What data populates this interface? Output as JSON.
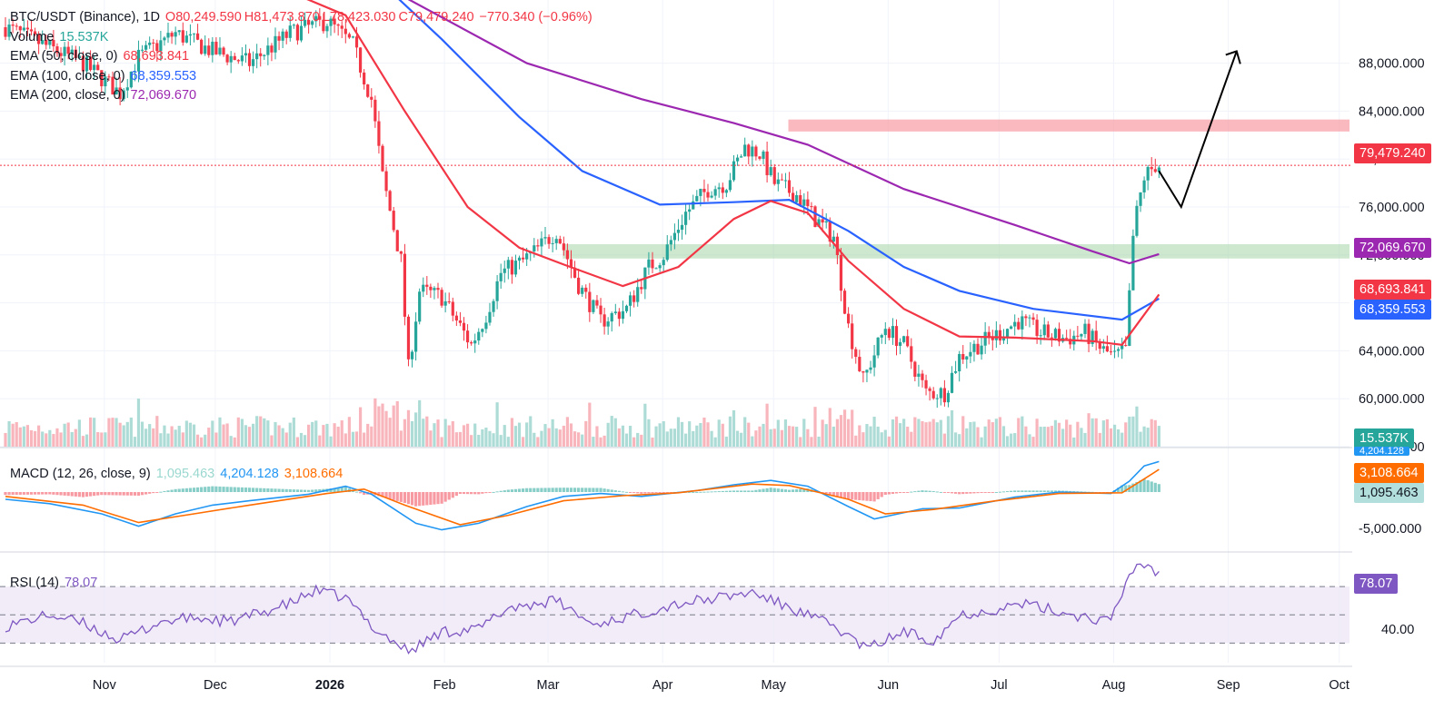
{
  "header": {
    "symbol": "BTC/USDT (Binance), 1D",
    "open": "O80,249.590",
    "high": "H81,473.870",
    "low": "L78,423.030",
    "close": "C79,479.240",
    "change": "−770.340 (−0.96%)"
  },
  "legend": {
    "volume_label": "Volume",
    "volume_value": "15.537K",
    "ema50_label": "EMA (50, close, 0)",
    "ema50_value": "68,693.841",
    "ema100_label": "EMA (100, close, 0)",
    "ema100_value": "68,359.553",
    "ema200_label": "EMA (200, close, 0)",
    "ema200_value": "72,069.670",
    "macd_label": "MACD (12, 26, close, 9)",
    "macd_hist_value": "1,095.463",
    "macd_value": "4,204.128",
    "macd_signal_value": "3,108.664",
    "rsi_label": "RSI (14)",
    "rsi_value": "78.07"
  },
  "badges": {
    "last_price": "79,479.240",
    "ema200": "72,069.670",
    "ema50": "68,693.841",
    "ema100": "68,359.553",
    "volume": "15.537K",
    "macd": "4,204.128",
    "macd_signal": "3,108.664",
    "macd_hist": "1,095.463",
    "rsi": "78.07"
  },
  "colors": {
    "up": "#26a69a",
    "down": "#f23645",
    "ema50": "#f23645",
    "ema100": "#2962ff",
    "ema200": "#9c27b0",
    "macd": "#2196f3",
    "signal": "#ff6d00",
    "rsi": "#7e57c2",
    "resistance_zone": "#f7a1a8",
    "support_zone": "#a5d6a7"
  },
  "chart_data": {
    "type": "candlestick",
    "symbol": "BTC/USDT",
    "interval": "1D",
    "x_range": [
      "2025-10-20",
      "2026-10-20"
    ],
    "price_axis": {
      "ticks": [
        "56,000.000",
        "60,000.000",
        "64,000.000",
        "68,000.000",
        "72,000.000",
        "76,000.000",
        "80,000.000",
        "84,000.000",
        "88,000.000"
      ],
      "range": [
        56000,
        91000
      ]
    },
    "x_ticks": [
      "Nov",
      "Dec",
      "2026",
      "Feb",
      "Mar",
      "Apr",
      "May",
      "Jun",
      "Jul",
      "Aug",
      "Sep",
      "Oct"
    ],
    "price_anchors": [
      [
        "2025-10-20",
        91000
      ],
      [
        "2025-11-10",
        88000
      ],
      [
        "2025-11-20",
        85500
      ],
      [
        "2025-11-25",
        88500
      ],
      [
        "2025-12-05",
        90500
      ],
      [
        "2025-12-15",
        89000
      ],
      [
        "2025-12-25",
        88000
      ],
      [
        "2026-01-05",
        90500
      ],
      [
        "2026-01-15",
        91500
      ],
      [
        "2026-01-22",
        89500
      ],
      [
        "2026-01-27",
        85000
      ],
      [
        "2026-01-30",
        78500
      ],
      [
        "2026-02-04",
        71500
      ],
      [
        "2026-02-06",
        62500
      ],
      [
        "2026-02-09",
        69000
      ],
      [
        "2026-02-15",
        68500
      ],
      [
        "2026-02-23",
        64500
      ],
      [
        "2026-02-27",
        67000
      ],
      [
        "2026-03-03",
        70500
      ],
      [
        "2026-03-09",
        71500
      ],
      [
        "2026-03-13",
        72500
      ],
      [
        "2026-03-18",
        74000
      ],
      [
        "2026-03-24",
        69500
      ],
      [
        "2026-03-30",
        66500
      ],
      [
        "2026-04-06",
        67500
      ],
      [
        "2026-04-12",
        71000
      ],
      [
        "2026-04-16",
        72000
      ],
      [
        "2026-04-22",
        75500
      ],
      [
        "2026-04-28",
        77500
      ],
      [
        "2026-05-03",
        78000
      ],
      [
        "2026-05-08",
        81000
      ],
      [
        "2026-05-12",
        80500
      ],
      [
        "2026-05-16",
        78000
      ],
      [
        "2026-05-22",
        77000
      ],
      [
        "2026-05-27",
        75000
      ],
      [
        "2026-06-01",
        73500
      ],
      [
        "2026-06-05",
        66000
      ],
      [
        "2026-06-09",
        61500
      ],
      [
        "2026-06-15",
        66000
      ],
      [
        "2026-06-20",
        64500
      ],
      [
        "2026-06-26",
        60500
      ],
      [
        "2026-07-01",
        60500
      ],
      [
        "2026-07-05",
        63500
      ],
      [
        "2026-07-10",
        64500
      ],
      [
        "2026-07-16",
        65500
      ],
      [
        "2026-07-21",
        66500
      ],
      [
        "2026-07-27",
        65500
      ],
      [
        "2026-08-03",
        65000
      ],
      [
        "2026-08-08",
        65500
      ],
      [
        "2026-08-13",
        64000
      ],
      [
        "2026-08-16",
        63500
      ],
      [
        "2026-08-19",
        64000
      ],
      [
        "2026-08-20",
        68500
      ],
      [
        "2026-08-21",
        73500
      ],
      [
        "2026-08-22",
        75500
      ],
      [
        "2026-08-24",
        78500
      ],
      [
        "2026-08-27",
        79500
      ],
      [
        "2026-08-28",
        79479.24
      ]
    ],
    "ema50": [
      [
        "2025-10-20",
        100000
      ],
      [
        "2025-12-20",
        96000
      ],
      [
        "2026-01-20",
        92000
      ],
      [
        "2026-02-05",
        84000
      ],
      [
        "2026-02-22",
        76000
      ],
      [
        "2026-03-08",
        72600
      ],
      [
        "2026-03-20",
        71200
      ],
      [
        "2026-04-05",
        69400
      ],
      [
        "2026-04-20",
        71000
      ],
      [
        "2026-05-05",
        75000
      ],
      [
        "2026-05-15",
        76500
      ],
      [
        "2026-05-25",
        75500
      ],
      [
        "2026-06-05",
        71500
      ],
      [
        "2026-06-20",
        67500
      ],
      [
        "2026-07-05",
        65200
      ],
      [
        "2026-07-20",
        65100
      ],
      [
        "2026-08-10",
        64800
      ],
      [
        "2026-08-18",
        64500
      ],
      [
        "2026-08-28",
        68693.841
      ]
    ],
    "ema100": [
      [
        "2025-10-20",
        108000
      ],
      [
        "2026-01-20",
        97500
      ],
      [
        "2026-02-15",
        90000
      ],
      [
        "2026-03-08",
        83500
      ],
      [
        "2026-03-25",
        79000
      ],
      [
        "2026-04-15",
        76200
      ],
      [
        "2026-05-05",
        76400
      ],
      [
        "2026-05-20",
        76600
      ],
      [
        "2026-06-05",
        74000
      ],
      [
        "2026-06-20",
        71000
      ],
      [
        "2026-07-05",
        69000
      ],
      [
        "2026-07-25",
        67500
      ],
      [
        "2026-08-18",
        66600
      ],
      [
        "2026-08-28",
        68359.553
      ]
    ],
    "ema200": [
      [
        "2025-10-20",
        110000
      ],
      [
        "2026-01-05",
        100000
      ],
      [
        "2026-02-05",
        93500
      ],
      [
        "2026-03-10",
        88000
      ],
      [
        "2026-04-10",
        85000
      ],
      [
        "2026-05-05",
        83000
      ],
      [
        "2026-05-25",
        81200
      ],
      [
        "2026-06-20",
        77500
      ],
      [
        "2026-07-20",
        74500
      ],
      [
        "2026-08-10",
        72300
      ],
      [
        "2026-08-20",
        71300
      ],
      [
        "2026-08-28",
        72069.67
      ]
    ],
    "zones": [
      {
        "type": "resistance",
        "low": 82300,
        "high": 83300,
        "from": "2026-05-05",
        "to": "2026-10-20"
      },
      {
        "type": "support",
        "low": 71700,
        "high": 72900,
        "from": "2026-03-05",
        "to": "2026-10-20"
      }
    ],
    "projection_arrow": [
      [
        "2026-08-28",
        79000
      ],
      [
        "2026-09-03",
        76000
      ],
      [
        "2026-09-18",
        89000
      ]
    ],
    "volume": {
      "last": "15.537K"
    },
    "macd": {
      "ticks": [
        "-5,000.000",
        "0.000"
      ],
      "range": [
        -7500,
        5000
      ],
      "macd_line": [
        [
          "2025-10-20",
          -1000
        ],
        [
          "2025-11-01",
          -1600
        ],
        [
          "2025-11-15",
          -3000
        ],
        [
          "2025-11-25",
          -4700
        ],
        [
          "2025-12-05",
          -3000
        ],
        [
          "2025-12-15",
          -1800
        ],
        [
          "2025-12-25",
          -1200
        ],
        [
          "2026-01-10",
          -300
        ],
        [
          "2026-01-20",
          800
        ],
        [
          "2026-01-27",
          -300
        ],
        [
          "2026-02-08",
          -4300
        ],
        [
          "2026-02-15",
          -5200
        ],
        [
          "2026-02-25",
          -4300
        ],
        [
          "2026-03-10",
          -2000
        ],
        [
          "2026-03-20",
          -600
        ],
        [
          "2026-03-30",
          -200
        ],
        [
          "2026-04-10",
          -600
        ],
        [
          "2026-04-25",
          200
        ],
        [
          "2026-05-05",
          1000
        ],
        [
          "2026-05-15",
          1600
        ],
        [
          "2026-05-25",
          800
        ],
        [
          "2026-06-05",
          -2000
        ],
        [
          "2026-06-12",
          -3700
        ],
        [
          "2026-06-25",
          -2300
        ],
        [
          "2026-07-05",
          -2200
        ],
        [
          "2026-07-20",
          -700
        ],
        [
          "2026-08-01",
          0
        ],
        [
          "2026-08-15",
          -200
        ],
        [
          "2026-08-20",
          1500
        ],
        [
          "2026-08-24",
          3600
        ],
        [
          "2026-08-28",
          4204.128
        ]
      ],
      "signal_line": [
        [
          "2025-10-20",
          -600
        ],
        [
          "2025-11-10",
          -1800
        ],
        [
          "2025-11-25",
          -4200
        ],
        [
          "2025-12-10",
          -3000
        ],
        [
          "2025-12-25",
          -1800
        ],
        [
          "2026-01-15",
          -200
        ],
        [
          "2026-01-25",
          400
        ],
        [
          "2026-02-05",
          -1800
        ],
        [
          "2026-02-20",
          -4500
        ],
        [
          "2026-03-05",
          -3200
        ],
        [
          "2026-03-20",
          -1200
        ],
        [
          "2026-04-05",
          -500
        ],
        [
          "2026-04-20",
          -100
        ],
        [
          "2026-05-10",
          1100
        ],
        [
          "2026-05-20",
          900
        ],
        [
          "2026-06-05",
          -1000
        ],
        [
          "2026-06-15",
          -3000
        ],
        [
          "2026-06-28",
          -2400
        ],
        [
          "2026-07-15",
          -1200
        ],
        [
          "2026-08-01",
          -200
        ],
        [
          "2026-08-18",
          -100
        ],
        [
          "2026-08-24",
          1800
        ],
        [
          "2026-08-28",
          3108.664
        ]
      ],
      "hist_last": "1,095.463"
    },
    "rsi": {
      "ticks": [
        "40.00"
      ],
      "range": [
        20,
        90
      ],
      "bands": [
        30,
        50,
        70
      ],
      "line": [
        [
          "2025-10-20",
          42
        ],
        [
          "2025-11-01",
          50
        ],
        [
          "2025-11-10",
          44
        ],
        [
          "2025-11-20",
          32
        ],
        [
          "2025-12-01",
          45
        ],
        [
          "2025-12-10",
          48
        ],
        [
          "2025-12-20",
          45
        ],
        [
          "2026-01-05",
          58
        ],
        [
          "2026-01-12",
          67
        ],
        [
          "2026-01-20",
          62
        ],
        [
          "2026-01-28",
          40
        ],
        [
          "2026-02-06",
          24
        ],
        [
          "2026-02-15",
          38
        ],
        [
          "2026-02-25",
          40
        ],
        [
          "2026-03-05",
          55
        ],
        [
          "2026-03-18",
          60
        ],
        [
          "2026-03-28",
          43
        ],
        [
          "2026-04-08",
          50
        ],
        [
          "2026-04-20",
          58
        ],
        [
          "2026-05-01",
          62
        ],
        [
          "2026-05-10",
          66
        ],
        [
          "2026-05-20",
          55
        ],
        [
          "2026-06-01",
          42
        ],
        [
          "2026-06-10",
          26
        ],
        [
          "2026-06-20",
          38
        ],
        [
          "2026-06-28",
          32
        ],
        [
          "2026-07-05",
          50
        ],
        [
          "2026-07-15",
          54
        ],
        [
          "2026-07-22",
          58
        ],
        [
          "2026-08-05",
          50
        ],
        [
          "2026-08-15",
          45
        ],
        [
          "2026-08-20",
          78
        ],
        [
          "2026-08-22",
          86
        ],
        [
          "2026-08-26",
          84
        ],
        [
          "2026-08-28",
          78.07
        ]
      ]
    }
  }
}
